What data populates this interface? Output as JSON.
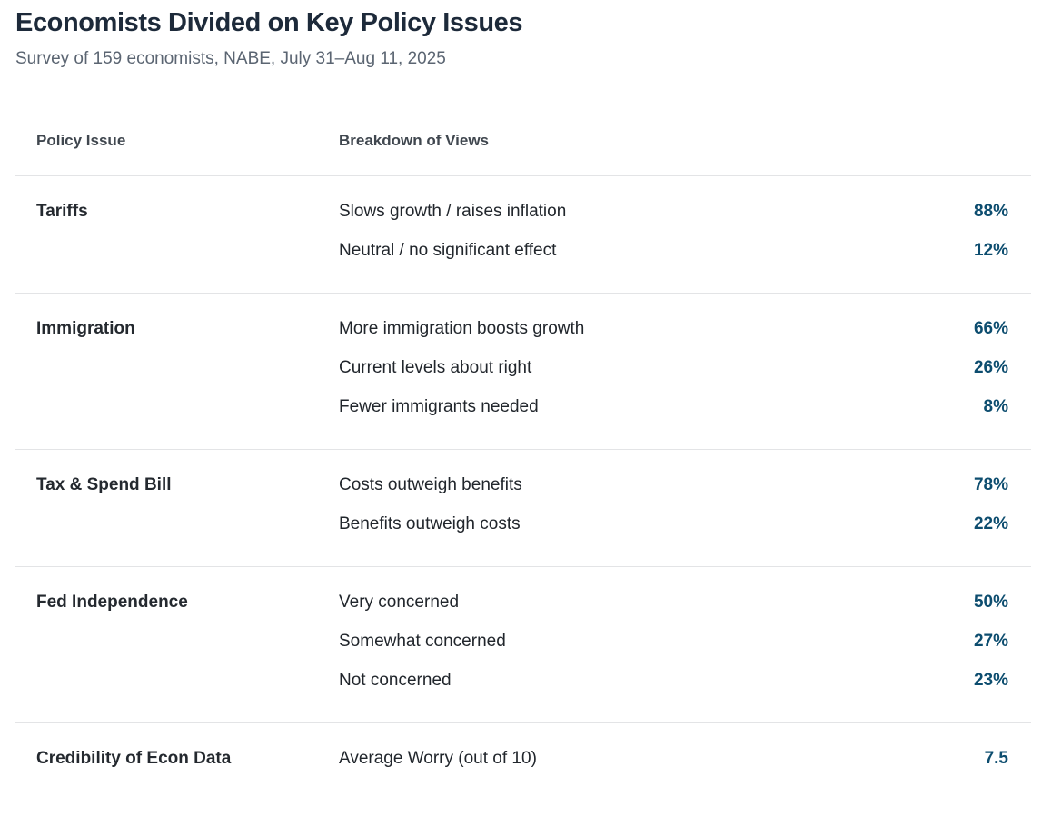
{
  "header": {
    "title": "Economists Divided on Key Policy Issues",
    "subtitle": "Survey of 159 economists, NABE, July 31–Aug 11, 2025"
  },
  "chart_data": {
    "type": "table",
    "title": "Economists Divided on Key Policy Issues",
    "subtitle": "Survey of 159 economists, NABE, July 31–Aug 11, 2025",
    "columns": [
      "Policy Issue",
      "Breakdown of Views"
    ],
    "sections": [
      {
        "issue": "Tariffs",
        "rows": [
          {
            "view": "Slows growth / raises inflation",
            "value": "88%"
          },
          {
            "view": "Neutral / no significant effect",
            "value": "12%"
          }
        ]
      },
      {
        "issue": "Immigration",
        "rows": [
          {
            "view": "More immigration boosts growth",
            "value": "66%"
          },
          {
            "view": "Current levels about right",
            "value": "26%"
          },
          {
            "view": "Fewer immigrants needed",
            "value": "8%"
          }
        ]
      },
      {
        "issue": "Tax & Spend Bill",
        "rows": [
          {
            "view": "Costs outweigh benefits",
            "value": "78%"
          },
          {
            "view": "Benefits outweigh costs",
            "value": "22%"
          }
        ]
      },
      {
        "issue": "Fed Independence",
        "rows": [
          {
            "view": "Very concerned",
            "value": "50%"
          },
          {
            "view": "Somewhat concerned",
            "value": "27%"
          },
          {
            "view": "Not concerned",
            "value": "23%"
          }
        ]
      },
      {
        "issue": "Credibility of Econ Data",
        "rows": [
          {
            "view": "Average Worry (out of 10)",
            "value": "7.5"
          }
        ]
      }
    ]
  },
  "colors": {
    "title": "#1d2a3a",
    "subtitle": "#5b6572",
    "column_header": "#40474f",
    "issue_text": "#24292f",
    "view_text": "#21262c",
    "value_accent": "#0d4d6f",
    "divider": "#e3e4e6",
    "background": "#ffffff"
  }
}
